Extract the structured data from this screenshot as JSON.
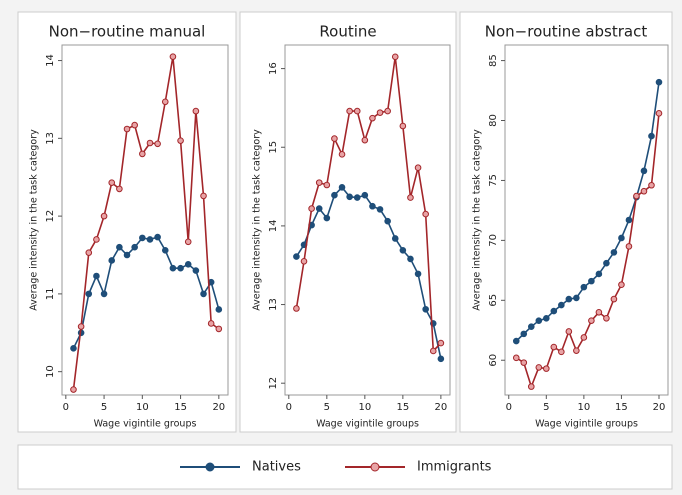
{
  "chart_data": [
    {
      "type": "line",
      "title": "Non−routine manual",
      "xlabel": "Wage vigintile groups",
      "ylabel": "Average intensity in the task category",
      "x": [
        1,
        2,
        3,
        4,
        5,
        6,
        7,
        8,
        9,
        10,
        11,
        12,
        13,
        14,
        15,
        16,
        17,
        18,
        19,
        20
      ],
      "xlim": [
        -0.5,
        21.2
      ],
      "xticks": [
        0,
        5,
        10,
        15,
        20
      ],
      "ylim": [
        9.7,
        14.2
      ],
      "yticks": [
        10,
        11,
        12,
        13,
        14
      ],
      "series": [
        {
          "name": "Natives",
          "color": "#1f4e79",
          "values": [
            10.3,
            10.5,
            11.0,
            11.23,
            11.0,
            11.43,
            11.6,
            11.5,
            11.6,
            11.72,
            11.7,
            11.73,
            11.56,
            11.33,
            11.33,
            11.38,
            11.3,
            11.0,
            11.15,
            10.8
          ]
        },
        {
          "name": "Immigrants",
          "color": "#a3262a",
          "values": [
            9.77,
            10.58,
            11.53,
            11.7,
            12.0,
            12.43,
            12.35,
            13.12,
            13.17,
            12.8,
            12.94,
            12.93,
            13.47,
            14.05,
            12.97,
            11.67,
            13.35,
            12.26,
            10.62,
            10.55
          ]
        }
      ]
    },
    {
      "type": "line",
      "title": "Routine",
      "xlabel": "Wage vigintile groups",
      "ylabel": "Average intensity in the task category",
      "x": [
        1,
        2,
        3,
        4,
        5,
        6,
        7,
        8,
        9,
        10,
        11,
        12,
        13,
        14,
        15,
        16,
        17,
        18,
        19,
        20
      ],
      "xlim": [
        -0.5,
        21.2
      ],
      "xticks": [
        0,
        5,
        10,
        15,
        20
      ],
      "ylim": [
        11.85,
        16.3
      ],
      "yticks": [
        12,
        13,
        14,
        15,
        16
      ],
      "series": [
        {
          "name": "Natives",
          "color": "#1f4e79",
          "values": [
            13.61,
            13.76,
            14.01,
            14.22,
            14.1,
            14.39,
            14.49,
            14.37,
            14.36,
            14.39,
            14.25,
            14.21,
            14.06,
            13.84,
            13.69,
            13.58,
            13.39,
            12.94,
            12.76,
            12.31
          ]
        },
        {
          "name": "Immigrants",
          "color": "#a3262a",
          "values": [
            12.95,
            13.55,
            14.22,
            14.55,
            14.52,
            15.11,
            14.91,
            15.46,
            15.46,
            15.09,
            15.37,
            15.44,
            15.46,
            16.15,
            15.27,
            14.36,
            14.74,
            14.15,
            12.41,
            12.51
          ]
        }
      ]
    },
    {
      "type": "line",
      "title": "Non−routine abstract",
      "xlabel": "Wage vigintile groups",
      "ylabel": "Average intensity in the task category",
      "x": [
        1,
        2,
        3,
        4,
        5,
        6,
        7,
        8,
        9,
        10,
        11,
        12,
        13,
        14,
        15,
        16,
        17,
        18,
        19,
        20
      ],
      "xlim": [
        -0.5,
        21.2
      ],
      "xticks": [
        0,
        5,
        10,
        15,
        20
      ],
      "ylim": [
        57.1,
        86.3
      ],
      "yticks": [
        60,
        65,
        70,
        75,
        80,
        85
      ],
      "series": [
        {
          "name": "Natives",
          "color": "#1f4e79",
          "values": [
            61.6,
            62.2,
            62.8,
            63.3,
            63.5,
            64.1,
            64.6,
            65.1,
            65.2,
            66.1,
            66.6,
            67.2,
            68.1,
            69.0,
            70.2,
            71.7,
            73.6,
            75.8,
            78.7,
            83.2
          ]
        },
        {
          "name": "Immigrants",
          "color": "#a3262a",
          "values": [
            60.2,
            59.8,
            57.8,
            59.4,
            59.3,
            61.1,
            60.7,
            62.4,
            60.8,
            61.9,
            63.3,
            64.0,
            63.5,
            65.1,
            66.3,
            69.5,
            73.7,
            74.1,
            74.6,
            80.6
          ]
        }
      ]
    }
  ]
}
